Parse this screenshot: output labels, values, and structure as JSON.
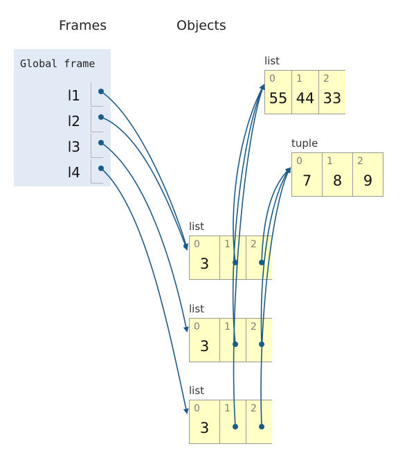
{
  "headers": {
    "frames": "Frames",
    "objects": "Objects"
  },
  "global_frame": {
    "title": "Global frame",
    "variables": [
      {
        "name": "l1",
        "points_to": "list_a"
      },
      {
        "name": "l2",
        "points_to": "list_a"
      },
      {
        "name": "l3",
        "points_to": "list_b"
      },
      {
        "name": "l4",
        "points_to": "list_c"
      }
    ]
  },
  "objects": {
    "list_top": {
      "type_label": "list",
      "items": [
        {
          "index": "0",
          "value": "55"
        },
        {
          "index": "1",
          "value": "44"
        },
        {
          "index": "2",
          "value": "33"
        }
      ]
    },
    "tuple_top": {
      "type_label": "tuple",
      "items": [
        {
          "index": "0",
          "value": "7"
        },
        {
          "index": "1",
          "value": "8"
        },
        {
          "index": "2",
          "value": "9"
        }
      ]
    },
    "list_a": {
      "type_label": "list",
      "items": [
        {
          "index": "0",
          "value": "3"
        },
        {
          "index": "1",
          "value": "",
          "ref": "list_top"
        },
        {
          "index": "2",
          "value": "",
          "ref": "tuple_top"
        }
      ]
    },
    "list_b": {
      "type_label": "list",
      "items": [
        {
          "index": "0",
          "value": "3"
        },
        {
          "index": "1",
          "value": "",
          "ref": "list_top"
        },
        {
          "index": "2",
          "value": "",
          "ref": "tuple_top"
        }
      ]
    },
    "list_c": {
      "type_label": "list",
      "items": [
        {
          "index": "0",
          "value": "3"
        },
        {
          "index": "1",
          "value": "",
          "ref": "list_top"
        },
        {
          "index": "2",
          "value": "",
          "ref": "tuple_top"
        }
      ]
    }
  },
  "colors": {
    "arrow": "#1c5a87",
    "object_fill": "#ffffc6",
    "frame_fill": "#e2eaf5"
  }
}
